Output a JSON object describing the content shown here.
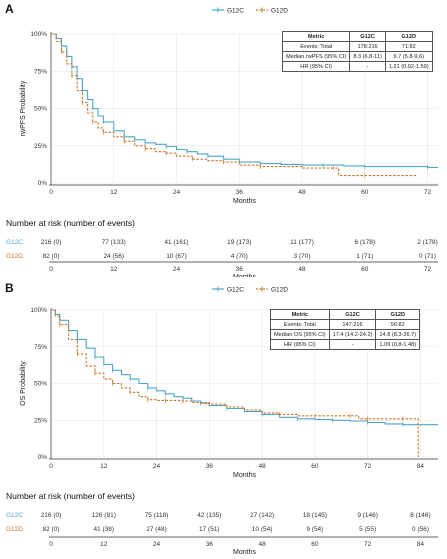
{
  "colors": {
    "G12C": "#4ca7c9",
    "G12D": "#c8782c",
    "axis": "#333333",
    "grid": "#e6e6e6"
  },
  "icons": {
    "legend_marker": "line-with-plus-icon"
  },
  "chart_data": [
    {
      "panel_label": "A",
      "type": "line",
      "subtype": "kaplan-meier",
      "ylabel": "rwPFS Probability",
      "xlabel": "Months",
      "xticks": [
        0,
        12,
        24,
        36,
        48,
        60,
        72
      ],
      "yticks": [
        "0%",
        "25%",
        "50%",
        "75%",
        "100%"
      ],
      "xlim": [
        0,
        74
      ],
      "ylim": [
        0,
        1
      ],
      "legend": {
        "placement": "top-center",
        "entries": [
          "G12C",
          "G12D"
        ]
      },
      "series": [
        {
          "name": "G12C",
          "color": "#4ca7c9",
          "style": "solid",
          "x": [
            0,
            1,
            2,
            3,
            4,
            5,
            6,
            7,
            8,
            9,
            10,
            12,
            14,
            16,
            18,
            20,
            22,
            24,
            26,
            28,
            30,
            33,
            36,
            40,
            44,
            48,
            52,
            56,
            60,
            66,
            72,
            74
          ],
          "y": [
            1.0,
            0.97,
            0.92,
            0.85,
            0.78,
            0.7,
            0.62,
            0.56,
            0.5,
            0.45,
            0.41,
            0.35,
            0.31,
            0.29,
            0.27,
            0.26,
            0.245,
            0.225,
            0.21,
            0.195,
            0.18,
            0.16,
            0.14,
            0.13,
            0.125,
            0.12,
            0.12,
            0.115,
            0.11,
            0.11,
            0.105,
            0.105
          ]
        },
        {
          "name": "G12D",
          "color": "#c8782c",
          "style": "dashed",
          "x": [
            0,
            1,
            2,
            3,
            4,
            5,
            6,
            7,
            8,
            9,
            10,
            12,
            14,
            16,
            18,
            20,
            22,
            24,
            27,
            30,
            33,
            36,
            40,
            48,
            54,
            55,
            60,
            70
          ],
          "y": [
            1.0,
            0.95,
            0.88,
            0.8,
            0.72,
            0.62,
            0.54,
            0.47,
            0.41,
            0.37,
            0.34,
            0.31,
            0.28,
            0.25,
            0.23,
            0.21,
            0.2,
            0.18,
            0.16,
            0.15,
            0.14,
            0.12,
            0.11,
            0.1,
            0.1,
            0.05,
            0.05,
            0.05
          ]
        }
      ],
      "stats_table": {
        "headers": [
          "Metric",
          "G12C",
          "G12D"
        ],
        "rows": [
          [
            "Events: Total",
            "178:216",
            "71:82"
          ],
          [
            "Median rwPFS (95% CI)",
            "8.3 (6.8-11)",
            "6.7 (5.8-9.6)"
          ],
          [
            "HR (95% CI)",
            "-",
            "1.21 (0.92-1.59)"
          ]
        ]
      },
      "risk_table": {
        "title": "Number at risk (number of events)",
        "xlabel": "Months",
        "rows": [
          {
            "name": "G12C",
            "values": [
              "216 (0)",
              "77 (133)",
              "41 (161)",
              "19 (173)",
              "11 (177)",
              "6 (178)",
              "2 (178)"
            ]
          },
          {
            "name": "G12D",
            "values": [
              "82 (0)",
              "24 (56)",
              "10 (67)",
              "4 (70)",
              "3 (70)",
              "1 (71)",
              "0 (71)"
            ]
          }
        ]
      }
    },
    {
      "panel_label": "B",
      "type": "line",
      "subtype": "kaplan-meier",
      "ylabel": "OS Probability",
      "xlabel": "Months",
      "xticks": [
        0,
        12,
        24,
        36,
        48,
        60,
        72,
        84
      ],
      "yticks": [
        "0%",
        "25%",
        "50%",
        "75%",
        "100%"
      ],
      "xlim": [
        0,
        88
      ],
      "ylim": [
        0,
        1
      ],
      "legend": {
        "placement": "top-center",
        "entries": [
          "G12C",
          "G12D"
        ]
      },
      "series": [
        {
          "name": "G12C",
          "color": "#4ca7c9",
          "style": "solid",
          "x": [
            0,
            1,
            2,
            4,
            6,
            8,
            10,
            12,
            14,
            16,
            18,
            20,
            22,
            24,
            26,
            28,
            30,
            32,
            34,
            36,
            40,
            44,
            48,
            52,
            56,
            60,
            64,
            68,
            72,
            76,
            80,
            84,
            88
          ],
          "y": [
            1.0,
            0.97,
            0.93,
            0.86,
            0.8,
            0.74,
            0.68,
            0.63,
            0.59,
            0.56,
            0.53,
            0.5,
            0.47,
            0.45,
            0.43,
            0.41,
            0.4,
            0.38,
            0.365,
            0.35,
            0.33,
            0.31,
            0.29,
            0.27,
            0.26,
            0.255,
            0.25,
            0.245,
            0.235,
            0.225,
            0.22,
            0.22,
            0.22
          ]
        },
        {
          "name": "G12D",
          "color": "#c8782c",
          "style": "dashed",
          "x": [
            0,
            1,
            2,
            4,
            6,
            8,
            10,
            12,
            14,
            16,
            18,
            20,
            22,
            24,
            26,
            28,
            30,
            32,
            36,
            40,
            44,
            48,
            52,
            56,
            60,
            64,
            68,
            70,
            72,
            76,
            80,
            83,
            83.5
          ],
          "y": [
            1.0,
            0.96,
            0.9,
            0.8,
            0.7,
            0.62,
            0.57,
            0.53,
            0.5,
            0.47,
            0.44,
            0.41,
            0.39,
            0.385,
            0.385,
            0.385,
            0.38,
            0.37,
            0.36,
            0.34,
            0.32,
            0.3,
            0.29,
            0.28,
            0.28,
            0.28,
            0.28,
            0.26,
            0.26,
            0.26,
            0.26,
            0.26,
            0.0
          ]
        }
      ],
      "stats_table": {
        "headers": [
          "Metric",
          "G12C",
          "G12D"
        ],
        "rows": [
          [
            "Events: Total",
            "147:216",
            "56:82"
          ],
          [
            "Median OS (95% CI)",
            "17.4 (14.2-24.2)",
            "14.8 (8.3-26.7)"
          ],
          [
            "HR (95% CI)",
            "-",
            "1.09 (0.8-1.48)"
          ]
        ]
      },
      "risk_table": {
        "title": "Number at risk (number of events)",
        "xlabel": "Months",
        "rows": [
          {
            "name": "G12C",
            "values": [
              "216 (0)",
              "126 (81)",
              "75 (118)",
              "42 (135)",
              "27 (142)",
              "18 (145)",
              "9 (146)",
              "8 (146)"
            ]
          },
          {
            "name": "G12D",
            "values": [
              "82 (0)",
              "41 (38)",
              "27 (48)",
              "17 (51)",
              "10 (54)",
              "9 (54)",
              "5 (55)",
              "0 (56)"
            ]
          }
        ]
      }
    }
  ]
}
